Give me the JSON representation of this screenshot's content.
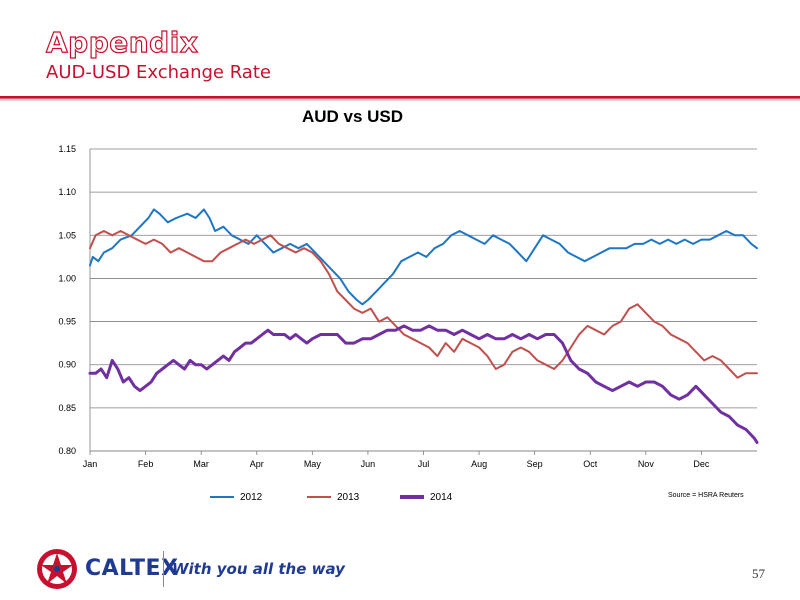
{
  "slide": {
    "title": "Appendix",
    "subtitle": "AUD-USD Exchange Rate",
    "page_number": "57"
  },
  "footer": {
    "brand": "CALTEX",
    "tagline": "With you all the way"
  },
  "colors": {
    "brand_red": "#c8102e",
    "brand_blue": "#1f3a93",
    "series_2012": "#1f77c4",
    "series_2013": "#c0504d",
    "series_2014": "#7030a0",
    "gridline": "#7f7f7f"
  },
  "chart_data": {
    "type": "line",
    "title": "AUD vs USD",
    "source": "Source = HSRA Reuters",
    "xlabel": "",
    "ylabel": "",
    "x_ticks": [
      "Jan",
      "Feb",
      "Mar",
      "Apr",
      "May",
      "Jun",
      "Jul",
      "Aug",
      "Sep",
      "Oct",
      "Nov",
      "Dec"
    ],
    "xlim": [
      0,
      12
    ],
    "y_ticks": [
      "0.80",
      "0.85",
      "0.90",
      "0.95",
      "1.00",
      "1.05",
      "1.10",
      "1.15"
    ],
    "ylim": [
      0.8,
      1.15
    ],
    "grid": true,
    "legend_position": "bottom",
    "series": [
      {
        "name": "2012",
        "color": "#1f77c4",
        "x": [
          0,
          0.05,
          0.15,
          0.25,
          0.4,
          0.55,
          0.75,
          0.9,
          1.05,
          1.15,
          1.25,
          1.4,
          1.55,
          1.75,
          1.9,
          2.05,
          2.15,
          2.25,
          2.4,
          2.55,
          2.7,
          2.85,
          3.0,
          3.15,
          3.3,
          3.45,
          3.6,
          3.75,
          3.9,
          4.05,
          4.2,
          4.35,
          4.5,
          4.65,
          4.8,
          4.9,
          5.0,
          5.15,
          5.3,
          5.45,
          5.6,
          5.75,
          5.9,
          6.05,
          6.2,
          6.35,
          6.5,
          6.65,
          6.8,
          6.95,
          7.1,
          7.25,
          7.4,
          7.55,
          7.7,
          7.85,
          8.0,
          8.15,
          8.3,
          8.45,
          8.6,
          8.75,
          8.9,
          9.05,
          9.2,
          9.35,
          9.5,
          9.65,
          9.8,
          9.95,
          10.1,
          10.25,
          10.4,
          10.55,
          10.7,
          10.85,
          11.0,
          11.15,
          11.3,
          11.45,
          11.6,
          11.75,
          11.9,
          12.0
        ],
        "values": [
          1.015,
          1.025,
          1.02,
          1.03,
          1.035,
          1.045,
          1.05,
          1.06,
          1.07,
          1.08,
          1.075,
          1.065,
          1.07,
          1.075,
          1.07,
          1.08,
          1.07,
          1.055,
          1.06,
          1.05,
          1.045,
          1.04,
          1.05,
          1.04,
          1.03,
          1.035,
          1.04,
          1.035,
          1.04,
          1.03,
          1.02,
          1.01,
          1.0,
          0.985,
          0.975,
          0.97,
          0.975,
          0.985,
          0.995,
          1.005,
          1.02,
          1.025,
          1.03,
          1.025,
          1.035,
          1.04,
          1.05,
          1.055,
          1.05,
          1.045,
          1.04,
          1.05,
          1.045,
          1.04,
          1.03,
          1.02,
          1.035,
          1.05,
          1.045,
          1.04,
          1.03,
          1.025,
          1.02,
          1.025,
          1.03,
          1.035,
          1.035,
          1.035,
          1.04,
          1.04,
          1.045,
          1.04,
          1.045,
          1.04,
          1.045,
          1.04,
          1.045,
          1.045,
          1.05,
          1.055,
          1.05,
          1.05,
          1.04,
          1.035
        ]
      },
      {
        "name": "2013",
        "color": "#c0504d",
        "x": [
          0,
          0.1,
          0.25,
          0.4,
          0.55,
          0.7,
          0.85,
          1.0,
          1.15,
          1.3,
          1.45,
          1.6,
          1.75,
          1.9,
          2.05,
          2.2,
          2.35,
          2.5,
          2.65,
          2.8,
          2.95,
          3.1,
          3.25,
          3.4,
          3.55,
          3.7,
          3.85,
          4.0,
          4.15,
          4.3,
          4.45,
          4.6,
          4.75,
          4.9,
          5.05,
          5.2,
          5.35,
          5.5,
          5.65,
          5.8,
          5.95,
          6.1,
          6.25,
          6.4,
          6.55,
          6.7,
          6.85,
          7.0,
          7.15,
          7.3,
          7.45,
          7.6,
          7.75,
          7.9,
          8.05,
          8.2,
          8.35,
          8.5,
          8.65,
          8.8,
          8.95,
          9.1,
          9.25,
          9.4,
          9.55,
          9.7,
          9.85,
          10.0,
          10.15,
          10.3,
          10.45,
          10.6,
          10.75,
          10.9,
          11.05,
          11.2,
          11.35,
          11.5,
          11.65,
          11.8,
          12.0
        ],
        "values": [
          1.035,
          1.05,
          1.055,
          1.05,
          1.055,
          1.05,
          1.045,
          1.04,
          1.045,
          1.04,
          1.03,
          1.035,
          1.03,
          1.025,
          1.02,
          1.02,
          1.03,
          1.035,
          1.04,
          1.045,
          1.04,
          1.045,
          1.05,
          1.04,
          1.035,
          1.03,
          1.035,
          1.03,
          1.02,
          1.005,
          0.985,
          0.975,
          0.965,
          0.96,
          0.965,
          0.95,
          0.955,
          0.945,
          0.935,
          0.93,
          0.925,
          0.92,
          0.91,
          0.925,
          0.915,
          0.93,
          0.925,
          0.92,
          0.91,
          0.895,
          0.9,
          0.915,
          0.92,
          0.915,
          0.905,
          0.9,
          0.895,
          0.905,
          0.92,
          0.935,
          0.945,
          0.94,
          0.935,
          0.945,
          0.95,
          0.965,
          0.97,
          0.96,
          0.95,
          0.945,
          0.935,
          0.93,
          0.925,
          0.915,
          0.905,
          0.91,
          0.905,
          0.895,
          0.885,
          0.89,
          0.89
        ]
      },
      {
        "name": "2014",
        "color": "#7030a0",
        "x": [
          0,
          0.1,
          0.2,
          0.3,
          0.4,
          0.5,
          0.6,
          0.7,
          0.8,
          0.9,
          1.0,
          1.1,
          1.2,
          1.3,
          1.4,
          1.5,
          1.6,
          1.7,
          1.8,
          1.9,
          2.0,
          2.1,
          2.2,
          2.3,
          2.4,
          2.5,
          2.6,
          2.7,
          2.8,
          2.9,
          3.0,
          3.1,
          3.2,
          3.3,
          3.4,
          3.5,
          3.6,
          3.7,
          3.8,
          3.9,
          4.0,
          4.15,
          4.3,
          4.45,
          4.6,
          4.75,
          4.9,
          5.05,
          5.2,
          5.35,
          5.5,
          5.65,
          5.8,
          5.95,
          6.1,
          6.25,
          6.4,
          6.55,
          6.7,
          6.85,
          7.0,
          7.15,
          7.3,
          7.45,
          7.6,
          7.75,
          7.9,
          8.05,
          8.2,
          8.35,
          8.5,
          8.65,
          8.8,
          8.95,
          9.1,
          9.25,
          9.4,
          9.55,
          9.7,
          9.85,
          10.0,
          10.15,
          10.3,
          10.45,
          10.6,
          10.75,
          10.9,
          11.05,
          11.2,
          11.35,
          11.5,
          11.65,
          11.8,
          11.95,
          12.0
        ],
        "values": [
          0.89,
          0.89,
          0.895,
          0.885,
          0.905,
          0.895,
          0.88,
          0.885,
          0.875,
          0.87,
          0.875,
          0.88,
          0.89,
          0.895,
          0.9,
          0.905,
          0.9,
          0.895,
          0.905,
          0.9,
          0.9,
          0.895,
          0.9,
          0.905,
          0.91,
          0.905,
          0.915,
          0.92,
          0.925,
          0.925,
          0.93,
          0.935,
          0.94,
          0.935,
          0.935,
          0.935,
          0.93,
          0.935,
          0.93,
          0.925,
          0.93,
          0.935,
          0.935,
          0.935,
          0.925,
          0.925,
          0.93,
          0.93,
          0.935,
          0.94,
          0.94,
          0.945,
          0.94,
          0.94,
          0.945,
          0.94,
          0.94,
          0.935,
          0.94,
          0.935,
          0.93,
          0.935,
          0.93,
          0.93,
          0.935,
          0.93,
          0.935,
          0.93,
          0.935,
          0.935,
          0.925,
          0.905,
          0.895,
          0.89,
          0.88,
          0.875,
          0.87,
          0.875,
          0.88,
          0.875,
          0.88,
          0.88,
          0.875,
          0.865,
          0.86,
          0.865,
          0.875,
          0.865,
          0.855,
          0.845,
          0.84,
          0.83,
          0.825,
          0.815,
          0.81
        ]
      }
    ]
  }
}
